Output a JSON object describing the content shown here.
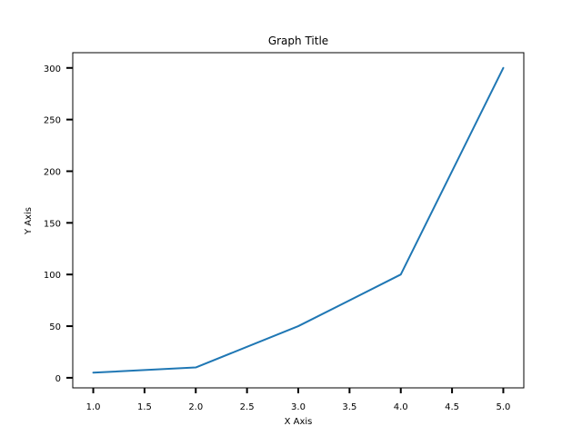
{
  "chart_data": {
    "type": "line",
    "title": "Graph Title",
    "xlabel": "X Axis",
    "ylabel": "Y Axis",
    "xlim": [
      0.8,
      5.2
    ],
    "ylim": [
      -9.75,
      314.75
    ],
    "x_ticks": [
      1.0,
      1.5,
      2.0,
      2.5,
      3.0,
      3.5,
      4.0,
      4.5,
      5.0
    ],
    "x_tick_labels": [
      "1.0",
      "1.5",
      "2.0",
      "2.5",
      "3.0",
      "3.5",
      "4.0",
      "4.5",
      "5.0"
    ],
    "y_ticks": [
      0,
      50,
      100,
      150,
      200,
      250,
      300
    ],
    "y_tick_labels": [
      "0",
      "50",
      "100",
      "150",
      "200",
      "250",
      "300"
    ],
    "grid": false,
    "series": [
      {
        "x": [
          1,
          2,
          3,
          4,
          5
        ],
        "y": [
          5,
          10,
          50,
          100,
          300
        ],
        "color": "#1f77b4"
      }
    ]
  }
}
